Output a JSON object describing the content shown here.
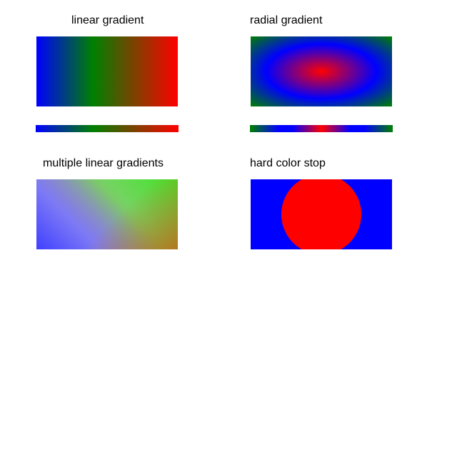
{
  "panels": {
    "linear": {
      "title": "linear gradient",
      "colors": [
        "#0000ff",
        "#008000",
        "#ff0000"
      ]
    },
    "radial": {
      "title": "radial gradient",
      "colors": [
        "#ff0000",
        "#0000ff",
        "#008000"
      ]
    },
    "multi": {
      "title": "multiple linear gradients"
    },
    "hard": {
      "title": "hard color stop",
      "colors": [
        "#ff0000",
        "#0000ff"
      ]
    }
  }
}
